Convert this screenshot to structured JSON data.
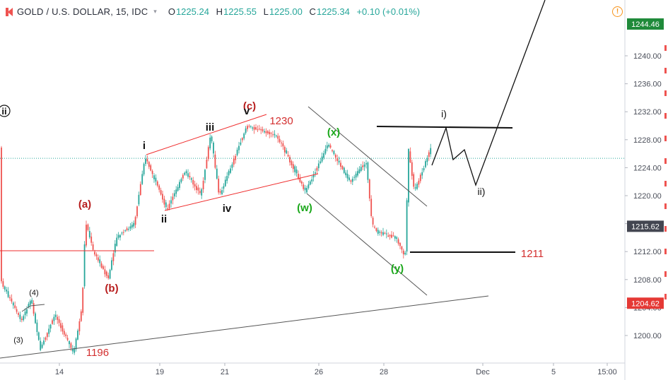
{
  "header": {
    "symbol": "GOLD / U.S. DOLLAR, 15, IDC",
    "open_label": "O",
    "open": "1225.24",
    "high_label": "H",
    "high": "1225.55",
    "low_label": "L",
    "low": "1225.00",
    "close_label": "C",
    "close": "1225.34",
    "change": "+0.10 (+0.01%)",
    "alert_glyph": "!"
  },
  "colors": {
    "up": "#26a69a",
    "down": "#ef5350",
    "wave_red": "#b71c1c",
    "wave_green": "#1ba81b",
    "price_tag_green": "#1f8a3a",
    "price_tag_red": "#e53935",
    "price_tag_dark": "#434651"
  },
  "chart_data": {
    "type": "candlestick",
    "y_axis": {
      "ticks": [
        "1200.00",
        "1204.00",
        "1208.00",
        "1212.00",
        "1216.00",
        "1220.00",
        "1224.00",
        "1228.00",
        "1232.00",
        "1236.00",
        "1240.00"
      ],
      "range": [
        1196,
        1248
      ],
      "price_tags": [
        {
          "label": "1244.46",
          "value": 1244.46,
          "color": "green"
        },
        {
          "label": "1215.62",
          "value": 1215.62,
          "color": "dark"
        },
        {
          "label": "1204.62",
          "value": 1204.62,
          "color": "red"
        }
      ]
    },
    "x_axis": {
      "ticks": [
        "14",
        "19",
        "21",
        "26",
        "28",
        "Dec",
        "5",
        "15:00"
      ]
    },
    "current_price": 1225.34,
    "price_path": [
      {
        "x": "13-Nov-a",
        "y": 1208
      },
      {
        "x": "13-Nov-b",
        "y": 1202
      },
      {
        "x": "13-Nov-c",
        "y": 1205.3
      },
      {
        "x": "14-Nov-a",
        "y": 1198
      },
      {
        "x": "14-Nov-b",
        "y": 1203
      },
      {
        "x": "15-Nov-a",
        "y": 1197.4
      },
      {
        "x": "15-Nov-b",
        "y": 1204
      },
      {
        "x": "15-Nov-c",
        "y": 1216.4
      },
      {
        "x": "16-Nov-a",
        "y": 1212
      },
      {
        "x": "16-Nov-b",
        "y": 1208.1
      },
      {
        "x": "16-Nov-c",
        "y": 1214
      },
      {
        "x": "16-Nov-d",
        "y": 1216
      },
      {
        "x": "17-Nov",
        "y": 1225.6
      },
      {
        "x": "19-Nov-a",
        "y": 1218
      },
      {
        "x": "19-Nov-b",
        "y": 1223.5
      },
      {
        "x": "20-Nov-a",
        "y": 1220
      },
      {
        "x": "20-Nov-b",
        "y": 1228.8
      },
      {
        "x": "21-Nov-a",
        "y": 1219.9
      },
      {
        "x": "21-Nov-b",
        "y": 1225
      },
      {
        "x": "22-Nov",
        "y": 1230
      },
      {
        "x": "23-Nov",
        "y": 1228.5
      },
      {
        "x": "26-Nov-a",
        "y": 1222
      },
      {
        "x": "26-Nov-b",
        "y": 1220.5
      },
      {
        "x": "26-Nov-c",
        "y": 1227.3
      },
      {
        "x": "27-Nov-a",
        "y": 1222
      },
      {
        "x": "27-Nov-b",
        "y": 1224.8
      },
      {
        "x": "27-Nov-c",
        "y": 1216
      },
      {
        "x": "28-Nov-a",
        "y": 1214.8
      },
      {
        "x": "28-Nov-b",
        "y": 1214
      },
      {
        "x": "29-Nov-a",
        "y": 1211.2
      },
      {
        "x": "29-Nov-b",
        "y": 1226.5
      },
      {
        "x": "29-Nov-c",
        "y": 1220.5
      },
      {
        "x": "30-Nov",
        "y": 1226.9
      }
    ],
    "annotations": {
      "wave_labels": [
        {
          "text": "ii",
          "style": "circle-black"
        },
        {
          "text": "(4)",
          "style": "small-black"
        },
        {
          "text": "(3)",
          "style": "small-black"
        },
        {
          "text": "(a)",
          "style": "red"
        },
        {
          "text": "(b)",
          "style": "red"
        },
        {
          "text": "(c)",
          "style": "red"
        },
        {
          "text": "i",
          "style": "black"
        },
        {
          "text": "ii",
          "style": "black"
        },
        {
          "text": "iii",
          "style": "black"
        },
        {
          "text": "iv",
          "style": "black"
        },
        {
          "text": "v",
          "style": "black"
        },
        {
          "text": "(x)",
          "style": "green"
        },
        {
          "text": "(w)",
          "style": "green"
        },
        {
          "text": "(y)",
          "style": "green"
        },
        {
          "text": "i)",
          "style": "plain"
        },
        {
          "text": "ii)",
          "style": "plain"
        }
      ],
      "level_labels": [
        {
          "text": "1230",
          "value": 1230
        },
        {
          "text": "1196",
          "value": 1196
        },
        {
          "text": "1211",
          "value": 1211
        }
      ]
    }
  }
}
